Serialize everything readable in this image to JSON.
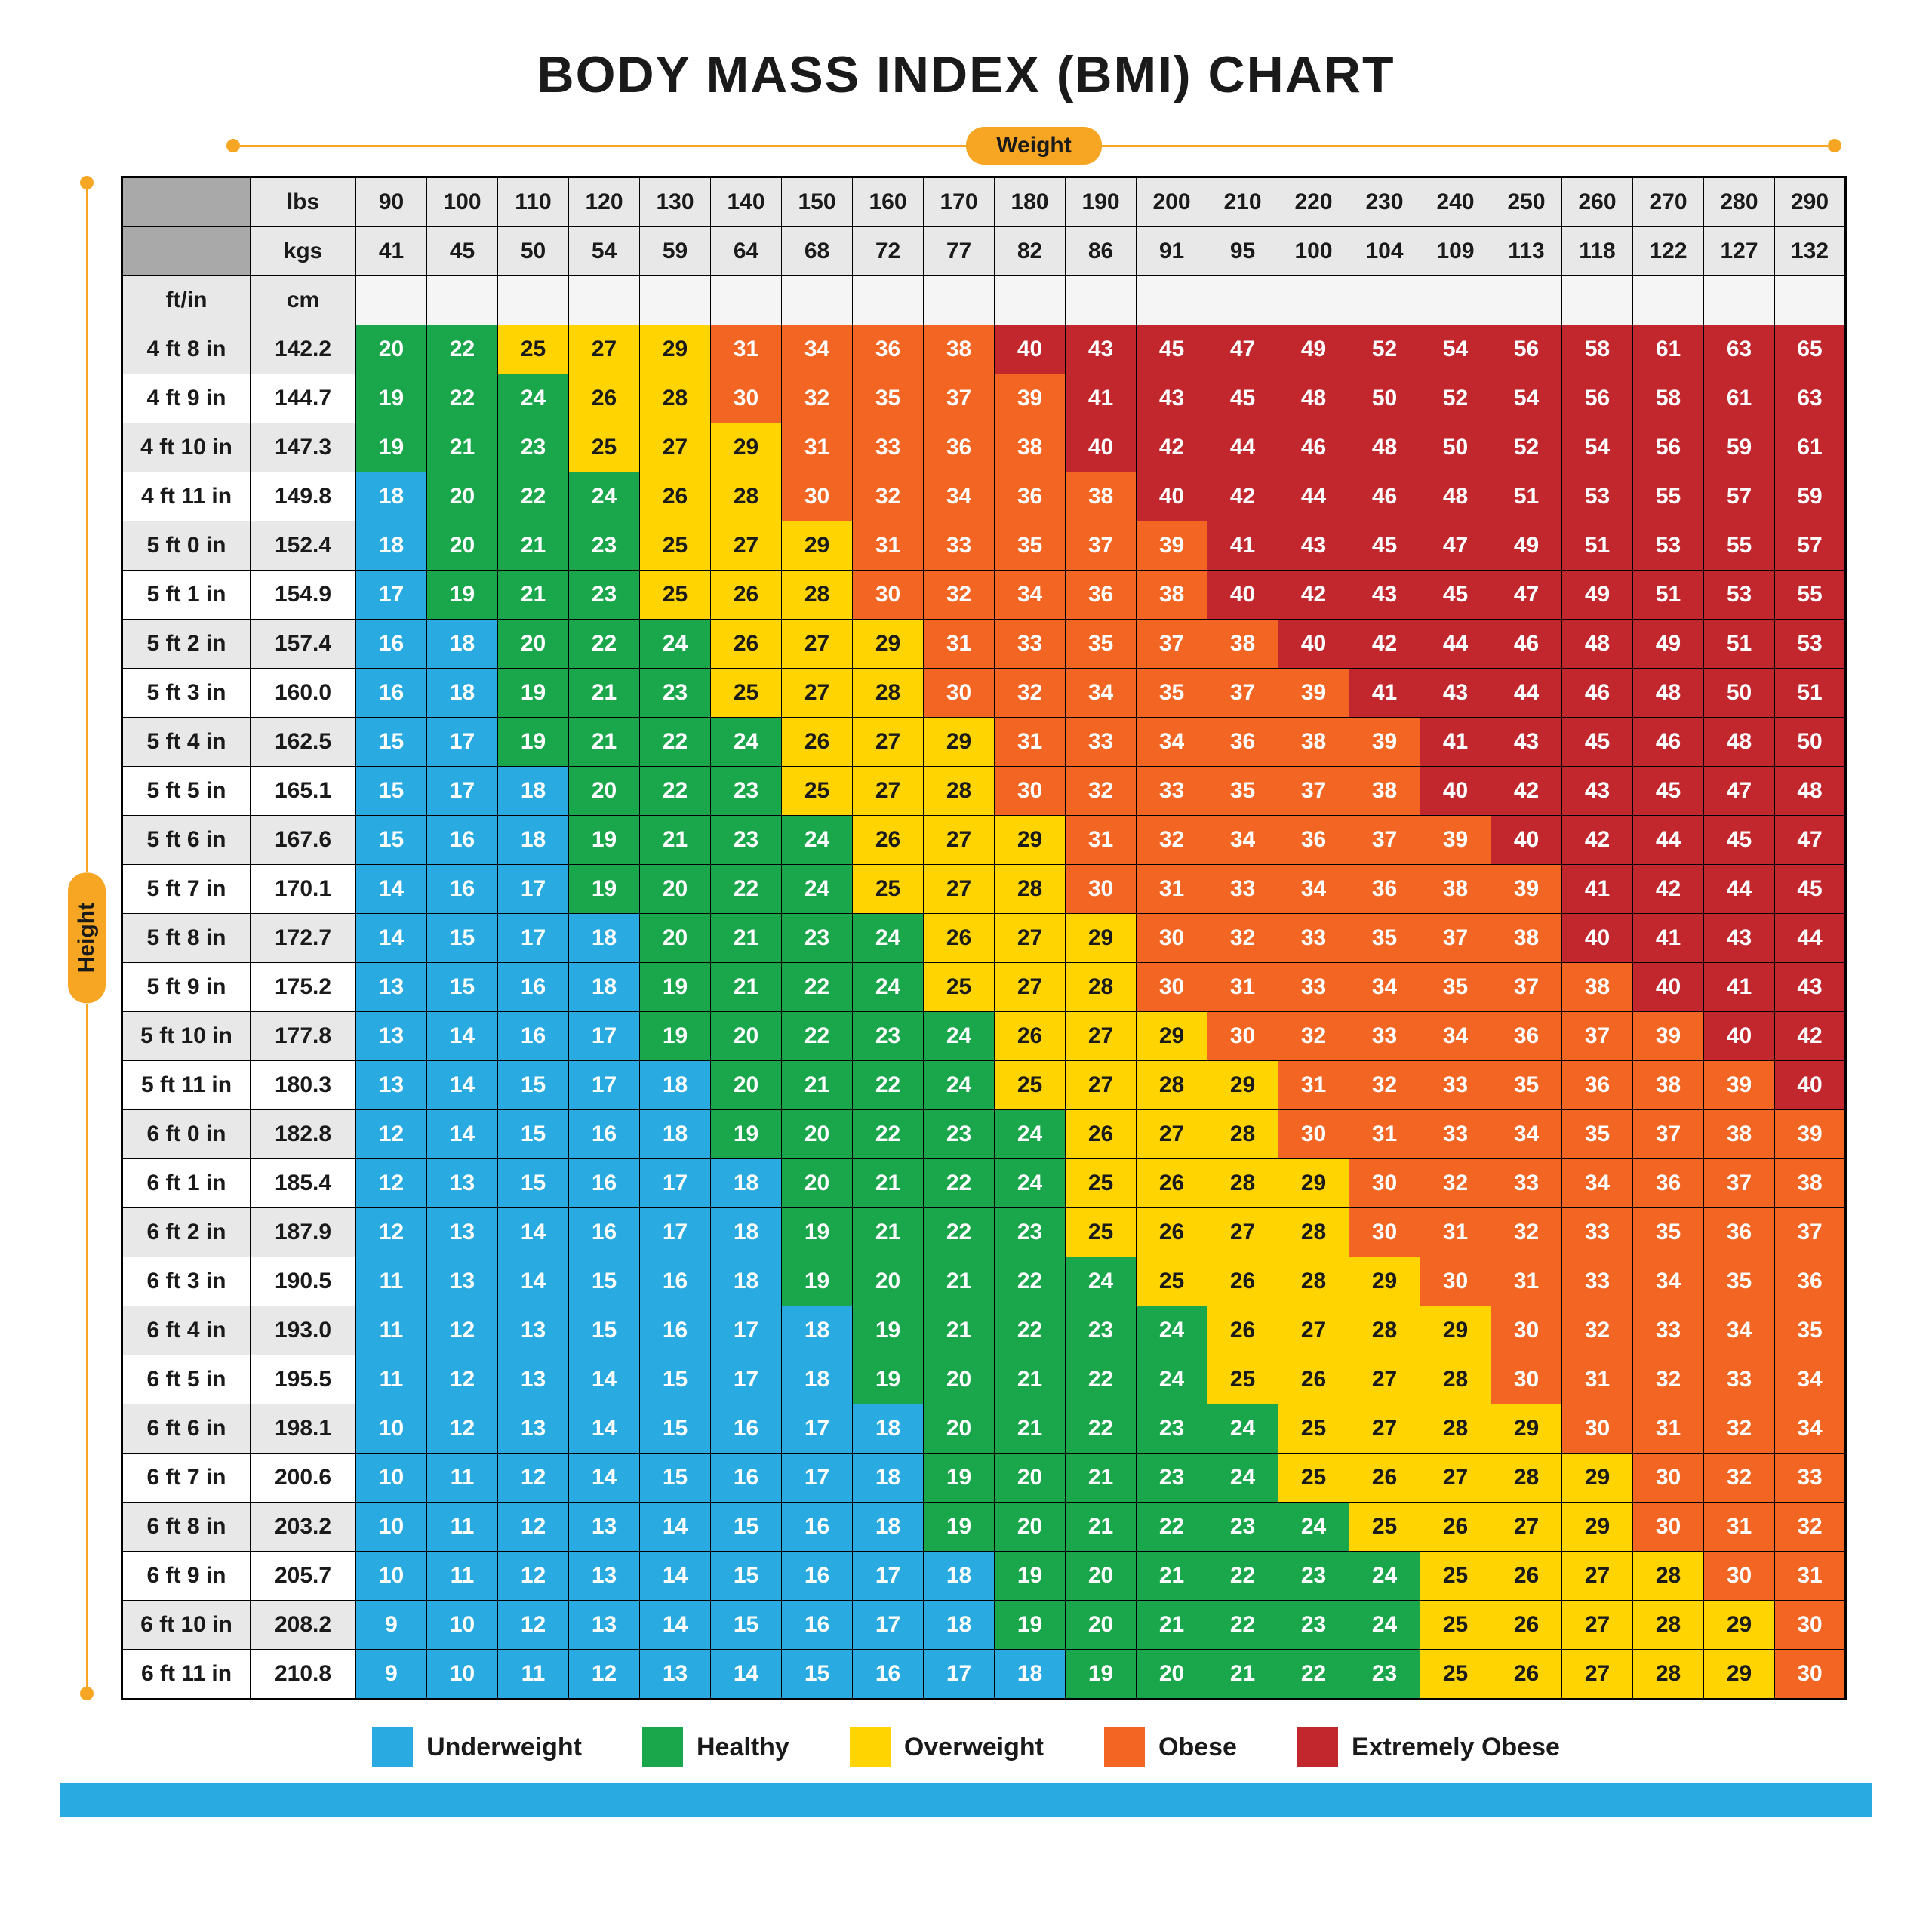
{
  "title": "BODY MASS INDEX (BMI) CHART",
  "axis": {
    "weight_label": "Weight",
    "height_label": "Height",
    "axis_color": "#f6a623"
  },
  "colors": {
    "underweight": "#29abe2",
    "healthy": "#1aa64a",
    "overweight": "#ffd400",
    "obese": "#f26522",
    "ext_obese": "#c1272d",
    "bottom_bar": "#29abe2",
    "header_dark": "#a9a9a9",
    "header_light": "#e8e8e8"
  },
  "header": {
    "lbs_label": "lbs",
    "kgs_label": "kgs",
    "ftin_label": "ft/in",
    "cm_label": "cm",
    "lbs": [
      90,
      100,
      110,
      120,
      130,
      140,
      150,
      160,
      170,
      180,
      190,
      200,
      210,
      220,
      230,
      240,
      250,
      260,
      270,
      280,
      290
    ],
    "kgs": [
      41,
      45,
      50,
      54,
      59,
      64,
      68,
      72,
      77,
      82,
      86,
      91,
      95,
      100,
      104,
      109,
      113,
      118,
      122,
      127,
      132
    ]
  },
  "thresholds": {
    "under_max": 18,
    "healthy_max": 24,
    "over_max": 29,
    "obese_max": 39
  },
  "rows": [
    {
      "ftin": "4 ft 8 in",
      "cm": "142.2",
      "v": [
        20,
        22,
        25,
        27,
        29,
        31,
        34,
        36,
        38,
        40,
        43,
        45,
        47,
        49,
        52,
        54,
        56,
        58,
        61,
        63,
        65
      ]
    },
    {
      "ftin": "4 ft 9 in",
      "cm": "144.7",
      "v": [
        19,
        22,
        24,
        26,
        28,
        30,
        32,
        35,
        37,
        39,
        41,
        43,
        45,
        48,
        50,
        52,
        54,
        56,
        58,
        61,
        63
      ]
    },
    {
      "ftin": "4 ft 10 in",
      "cm": "147.3",
      "v": [
        19,
        21,
        23,
        25,
        27,
        29,
        31,
        33,
        36,
        38,
        40,
        42,
        44,
        46,
        48,
        50,
        52,
        54,
        56,
        59,
        61
      ]
    },
    {
      "ftin": "4 ft 11 in",
      "cm": "149.8",
      "v": [
        18,
        20,
        22,
        24,
        26,
        28,
        30,
        32,
        34,
        36,
        38,
        40,
        42,
        44,
        46,
        48,
        51,
        53,
        55,
        57,
        59
      ]
    },
    {
      "ftin": "5 ft 0 in",
      "cm": "152.4",
      "v": [
        18,
        20,
        21,
        23,
        25,
        27,
        29,
        31,
        33,
        35,
        37,
        39,
        41,
        43,
        45,
        47,
        49,
        51,
        53,
        55,
        57
      ]
    },
    {
      "ftin": "5 ft 1 in",
      "cm": "154.9",
      "v": [
        17,
        19,
        21,
        23,
        25,
        26,
        28,
        30,
        32,
        34,
        36,
        38,
        40,
        42,
        43,
        45,
        47,
        49,
        51,
        53,
        55
      ]
    },
    {
      "ftin": "5 ft 2 in",
      "cm": "157.4",
      "v": [
        16,
        18,
        20,
        22,
        24,
        26,
        27,
        29,
        31,
        33,
        35,
        37,
        38,
        40,
        42,
        44,
        46,
        48,
        49,
        51,
        53
      ]
    },
    {
      "ftin": "5 ft 3 in",
      "cm": "160.0",
      "v": [
        16,
        18,
        19,
        21,
        23,
        25,
        27,
        28,
        30,
        32,
        34,
        35,
        37,
        39,
        41,
        43,
        44,
        46,
        48,
        50,
        51
      ]
    },
    {
      "ftin": "5 ft 4 in",
      "cm": "162.5",
      "v": [
        15,
        17,
        19,
        21,
        22,
        24,
        26,
        27,
        29,
        31,
        33,
        34,
        36,
        38,
        39,
        41,
        43,
        45,
        46,
        48,
        50
      ]
    },
    {
      "ftin": "5 ft 5 in",
      "cm": "165.1",
      "v": [
        15,
        17,
        18,
        20,
        22,
        23,
        25,
        27,
        28,
        30,
        32,
        33,
        35,
        37,
        38,
        40,
        42,
        43,
        45,
        47,
        48
      ]
    },
    {
      "ftin": "5 ft 6 in",
      "cm": "167.6",
      "v": [
        15,
        16,
        18,
        19,
        21,
        23,
        24,
        26,
        27,
        29,
        31,
        32,
        34,
        36,
        37,
        39,
        40,
        42,
        44,
        45,
        47
      ]
    },
    {
      "ftin": "5 ft 7 in",
      "cm": "170.1",
      "v": [
        14,
        16,
        17,
        19,
        20,
        22,
        24,
        25,
        27,
        28,
        30,
        31,
        33,
        34,
        36,
        38,
        39,
        41,
        42,
        44,
        45
      ]
    },
    {
      "ftin": "5 ft 8 in",
      "cm": "172.7",
      "v": [
        14,
        15,
        17,
        18,
        20,
        21,
        23,
        24,
        26,
        27,
        29,
        30,
        32,
        33,
        35,
        37,
        38,
        40,
        41,
        43,
        44
      ]
    },
    {
      "ftin": "5 ft 9 in",
      "cm": "175.2",
      "v": [
        13,
        15,
        16,
        18,
        19,
        21,
        22,
        24,
        25,
        27,
        28,
        30,
        31,
        33,
        34,
        35,
        37,
        38,
        40,
        41,
        43
      ]
    },
    {
      "ftin": "5 ft 10 in",
      "cm": "177.8",
      "v": [
        13,
        14,
        16,
        17,
        19,
        20,
        22,
        23,
        24,
        26,
        27,
        29,
        30,
        32,
        33,
        34,
        36,
        37,
        39,
        40,
        42
      ]
    },
    {
      "ftin": "5 ft 11 in",
      "cm": "180.3",
      "v": [
        13,
        14,
        15,
        17,
        18,
        20,
        21,
        22,
        24,
        25,
        27,
        28,
        29,
        31,
        32,
        33,
        35,
        36,
        38,
        39,
        40
      ]
    },
    {
      "ftin": "6 ft 0 in",
      "cm": "182.8",
      "v": [
        12,
        14,
        15,
        16,
        18,
        19,
        20,
        22,
        23,
        24,
        26,
        27,
        28,
        30,
        31,
        33,
        34,
        35,
        37,
        38,
        39
      ]
    },
    {
      "ftin": "6 ft 1 in",
      "cm": "185.4",
      "v": [
        12,
        13,
        15,
        16,
        17,
        18,
        20,
        21,
        22,
        24,
        25,
        26,
        28,
        29,
        30,
        32,
        33,
        34,
        36,
        37,
        38
      ]
    },
    {
      "ftin": "6 ft 2 in",
      "cm": "187.9",
      "v": [
        12,
        13,
        14,
        16,
        17,
        18,
        19,
        21,
        22,
        23,
        25,
        26,
        27,
        28,
        30,
        31,
        32,
        33,
        35,
        36,
        37
      ]
    },
    {
      "ftin": "6 ft 3 in",
      "cm": "190.5",
      "v": [
        11,
        13,
        14,
        15,
        16,
        18,
        19,
        20,
        21,
        22,
        24,
        25,
        26,
        28,
        29,
        30,
        31,
        33,
        34,
        35,
        36
      ]
    },
    {
      "ftin": "6 ft 4 in",
      "cm": "193.0",
      "v": [
        11,
        12,
        13,
        15,
        16,
        17,
        18,
        19,
        21,
        22,
        23,
        24,
        26,
        27,
        28,
        29,
        30,
        32,
        33,
        34,
        35
      ]
    },
    {
      "ftin": "6 ft 5 in",
      "cm": "195.5",
      "v": [
        11,
        12,
        13,
        14,
        15,
        17,
        18,
        19,
        20,
        21,
        22,
        24,
        25,
        26,
        27,
        28,
        30,
        31,
        32,
        33,
        34
      ]
    },
    {
      "ftin": "6 ft 6 in",
      "cm": "198.1",
      "v": [
        10,
        12,
        13,
        14,
        15,
        16,
        17,
        18,
        20,
        21,
        22,
        23,
        24,
        25,
        27,
        28,
        29,
        30,
        31,
        32,
        34
      ]
    },
    {
      "ftin": "6 ft 7 in",
      "cm": "200.6",
      "v": [
        10,
        11,
        12,
        14,
        15,
        16,
        17,
        18,
        19,
        20,
        21,
        23,
        24,
        25,
        26,
        27,
        28,
        29,
        30,
        32,
        33
      ]
    },
    {
      "ftin": "6 ft 8 in",
      "cm": "203.2",
      "v": [
        10,
        11,
        12,
        13,
        14,
        15,
        16,
        18,
        19,
        20,
        21,
        22,
        23,
        24,
        25,
        26,
        27,
        29,
        30,
        31,
        32
      ]
    },
    {
      "ftin": "6 ft 9 in",
      "cm": "205.7",
      "v": [
        10,
        11,
        12,
        13,
        14,
        15,
        16,
        17,
        18,
        19,
        20,
        21,
        22,
        23,
        24,
        25,
        26,
        27,
        28,
        30,
        31
      ]
    },
    {
      "ftin": "6 ft 10 in",
      "cm": "208.2",
      "v": [
        9,
        10,
        12,
        13,
        14,
        15,
        16,
        17,
        18,
        19,
        20,
        21,
        22,
        23,
        24,
        25,
        26,
        27,
        28,
        29,
        30
      ]
    },
    {
      "ftin": "6 ft 11 in",
      "cm": "210.8",
      "v": [
        9,
        10,
        11,
        12,
        13,
        14,
        15,
        16,
        17,
        18,
        19,
        20,
        21,
        22,
        23,
        25,
        26,
        27,
        28,
        29,
        30
      ]
    }
  ],
  "legend": [
    {
      "label": "Underweight",
      "key": "underweight"
    },
    {
      "label": "Healthy",
      "key": "healthy"
    },
    {
      "label": "Overweight",
      "key": "overweight"
    },
    {
      "label": "Obese",
      "key": "obese"
    },
    {
      "label": "Extremely Obese",
      "key": "ext_obese"
    }
  ]
}
